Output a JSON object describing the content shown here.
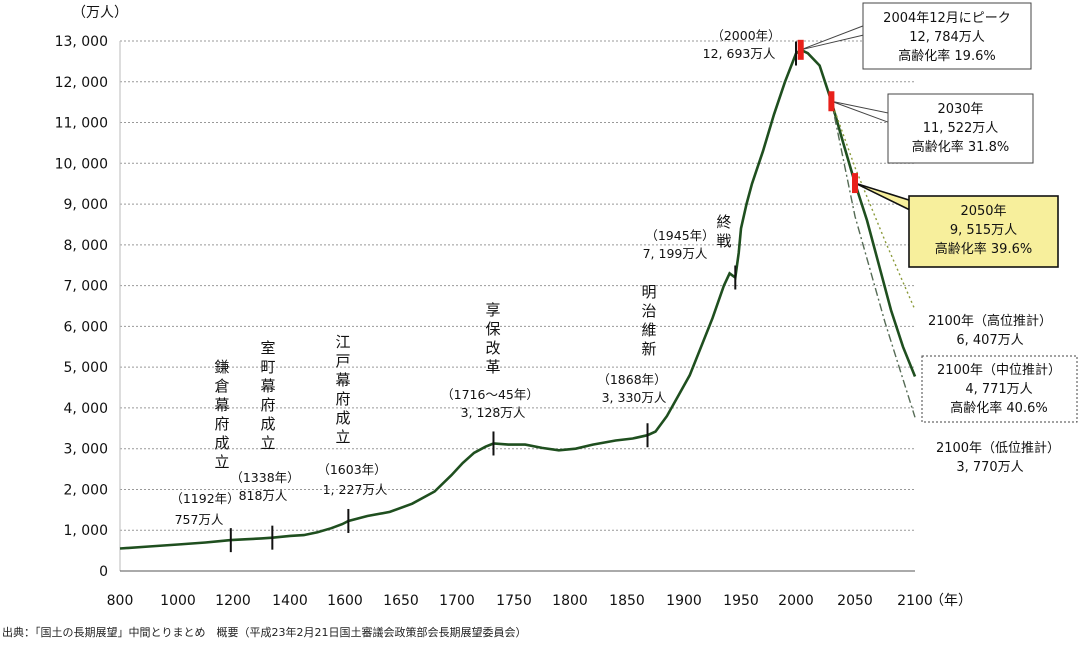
{
  "chart_data": {
    "type": "line",
    "units": {
      "y": "（万人）",
      "x": "（年）"
    },
    "xlim": [
      800,
      2100
    ],
    "ylim": [
      0,
      13000
    ],
    "x_ticks": [
      "800",
      "1000",
      "1200",
      "1400",
      "1600",
      "1650",
      "1700",
      "1750",
      "1800",
      "1850",
      "1900",
      "1950",
      "2000",
      "2050",
      "2100"
    ],
    "y_ticks": [
      "0",
      "1, 000",
      "2, 000",
      "3, 000",
      "4, 000",
      "5, 000",
      "6, 000",
      "7, 000",
      "8, 000",
      "9, 000",
      "10, 000",
      "11, 000",
      "12, 000",
      "13, 000"
    ],
    "grid": "horizontal-dashed",
    "series": [
      {
        "name": "",
        "points": [
          [
            800,
            551
          ],
          [
            900,
            600
          ],
          [
            1000,
            650
          ],
          [
            1100,
            700
          ],
          [
            1150,
            730
          ],
          [
            1192,
            757
          ],
          [
            1250,
            780
          ],
          [
            1300,
            800
          ],
          [
            1338,
            818
          ],
          [
            1400,
            860
          ],
          [
            1450,
            880
          ],
          [
            1500,
            950
          ],
          [
            1550,
            1050
          ],
          [
            1590,
            1150
          ],
          [
            1603,
            1227
          ],
          [
            1620,
            1350
          ],
          [
            1640,
            1450
          ],
          [
            1660,
            1650
          ],
          [
            1680,
            1950
          ],
          [
            1695,
            2350
          ],
          [
            1705,
            2650
          ],
          [
            1715,
            2900
          ],
          [
            1725,
            3050
          ],
          [
            1732,
            3128
          ],
          [
            1745,
            3100
          ],
          [
            1760,
            3100
          ],
          [
            1775,
            3020
          ],
          [
            1790,
            2960
          ],
          [
            1805,
            3000
          ],
          [
            1820,
            3100
          ],
          [
            1840,
            3200
          ],
          [
            1855,
            3250
          ],
          [
            1868,
            3330
          ],
          [
            1875,
            3420
          ],
          [
            1885,
            3800
          ],
          [
            1895,
            4300
          ],
          [
            1905,
            4800
          ],
          [
            1915,
            5500
          ],
          [
            1925,
            6200
          ],
          [
            1935,
            7000
          ],
          [
            1940,
            7300
          ],
          [
            1945,
            7199
          ],
          [
            1948,
            7800
          ],
          [
            1950,
            8400
          ],
          [
            1955,
            9000
          ],
          [
            1960,
            9500
          ],
          [
            1970,
            10300
          ],
          [
            1980,
            11200
          ],
          [
            1990,
            12000
          ],
          [
            2000,
            12693
          ],
          [
            2004,
            12784
          ],
          [
            2010,
            12700
          ],
          [
            2020,
            12400
          ],
          [
            2030,
            11522
          ],
          [
            2040,
            10500
          ],
          [
            2050,
            9515
          ],
          [
            2060,
            8600
          ],
          [
            2070,
            7500
          ],
          [
            2080,
            6400
          ],
          [
            2090,
            5500
          ],
          [
            2100,
            4771
          ]
        ]
      },
      {
        "name": "高位推計",
        "style": "dotted",
        "points": [
          [
            2030,
            11522
          ],
          [
            2050,
            9900
          ],
          [
            2075,
            8100
          ],
          [
            2100,
            6407
          ]
        ]
      },
      {
        "name": "低位推計",
        "style": "dashdot",
        "points": [
          [
            2030,
            11522
          ],
          [
            2050,
            8700
          ],
          [
            2075,
            6100
          ],
          [
            2100,
            3770
          ]
        ]
      }
    ],
    "events": [
      {
        "label": "鎌倉幕府成立",
        "year": "（1192年）",
        "value": "757万人",
        "x": 1192,
        "y": 757
      },
      {
        "label": "室町幕府成立",
        "year": "（1338年）",
        "value": "818万人",
        "x": 1338,
        "y": 818
      },
      {
        "label": "江戸幕府成立",
        "year": "（1603年）",
        "value": "1, 227万人",
        "x": 1603,
        "y": 1227
      },
      {
        "label": "享保改革",
        "year": "（1716～45年）",
        "value": "3, 128万人",
        "x": 1732,
        "y": 3128
      },
      {
        "label": "明治維新",
        "year": "（1868年）",
        "value": "3, 330万人",
        "x": 1868,
        "y": 3330
      },
      {
        "label": "終戦",
        "year": "（1945年）",
        "value": "7, 199万人",
        "x": 1945,
        "y": 7199
      },
      {
        "label": "",
        "year": "（2000年）",
        "value": "12, 693万人",
        "x": 2000,
        "y": 12693
      }
    ],
    "callouts": [
      {
        "line1": "2004年12月にピーク",
        "line2": "12, 784万人",
        "line3": "高齢化率 19.6%",
        "x": 2004,
        "y": 12784
      },
      {
        "line1": "2030年",
        "line2": "11, 522万人",
        "line3": "高齢化率 31.8%",
        "x": 2030,
        "y": 11522
      },
      {
        "line1": "2050年",
        "line2": "9, 515万人",
        "line3": "高齢化率 39.6%",
        "x": 2050,
        "y": 9515
      }
    ],
    "projections": [
      {
        "label": "2100年（高位推計）",
        "value": "6, 407万人"
      },
      {
        "label": "2100年（中位推計）",
        "value": "4, 771万人",
        "rate": "高齢化率 40.6%"
      },
      {
        "label": "2100年（低位推計）",
        "value": "3, 770万人"
      }
    ],
    "colors": {
      "line": "#1f4f1f",
      "red": "#e8201a",
      "highlight_box": "#f7ef9c",
      "grid": "#999999"
    },
    "source": "出典：「国土の長期展望」中間とりまとめ　概要（平成23年2月21日国土審議会政策部会長期展望委員会）"
  }
}
